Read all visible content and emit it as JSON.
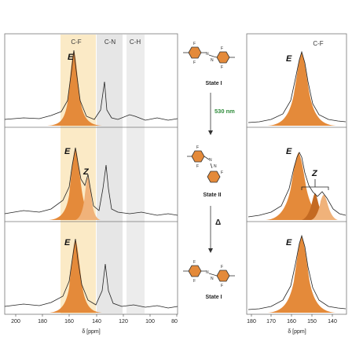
{
  "figure": {
    "left_panel": {
      "band_labels": [
        "C-F",
        "C-N",
        "C-H"
      ],
      "row_labels": [
        {
          "e": "E",
          "z": ""
        },
        {
          "e": "E",
          "z": "Z"
        },
        {
          "e": "E",
          "z": ""
        }
      ],
      "ticks": [
        "200",
        "180",
        "160",
        "140",
        "120",
        "100",
        "80"
      ],
      "xlabel": "δ [ppm]"
    },
    "middle_panel": {
      "state_1": "State I",
      "arrow_1_label": "530 nm",
      "state_2": "State II",
      "arrow_2_label": "Δ",
      "state_3": "State I"
    },
    "right_panel": {
      "band_label": "C-F",
      "row_labels": [
        {
          "e": "E",
          "z": ""
        },
        {
          "e": "E",
          "z": "Z"
        },
        {
          "e": "E",
          "z": ""
        }
      ],
      "ticks": [
        "180",
        "170",
        "160",
        "150",
        "140"
      ],
      "xlabel": "δ [ppm]"
    },
    "colors": {
      "fill_main": "#e48a3a",
      "fill_light": "#f0b27a",
      "band_cf": "#fbeac6",
      "band_cn": "#e6e6e6",
      "band_ch": "#ececec",
      "trace": "#222222"
    }
  }
}
